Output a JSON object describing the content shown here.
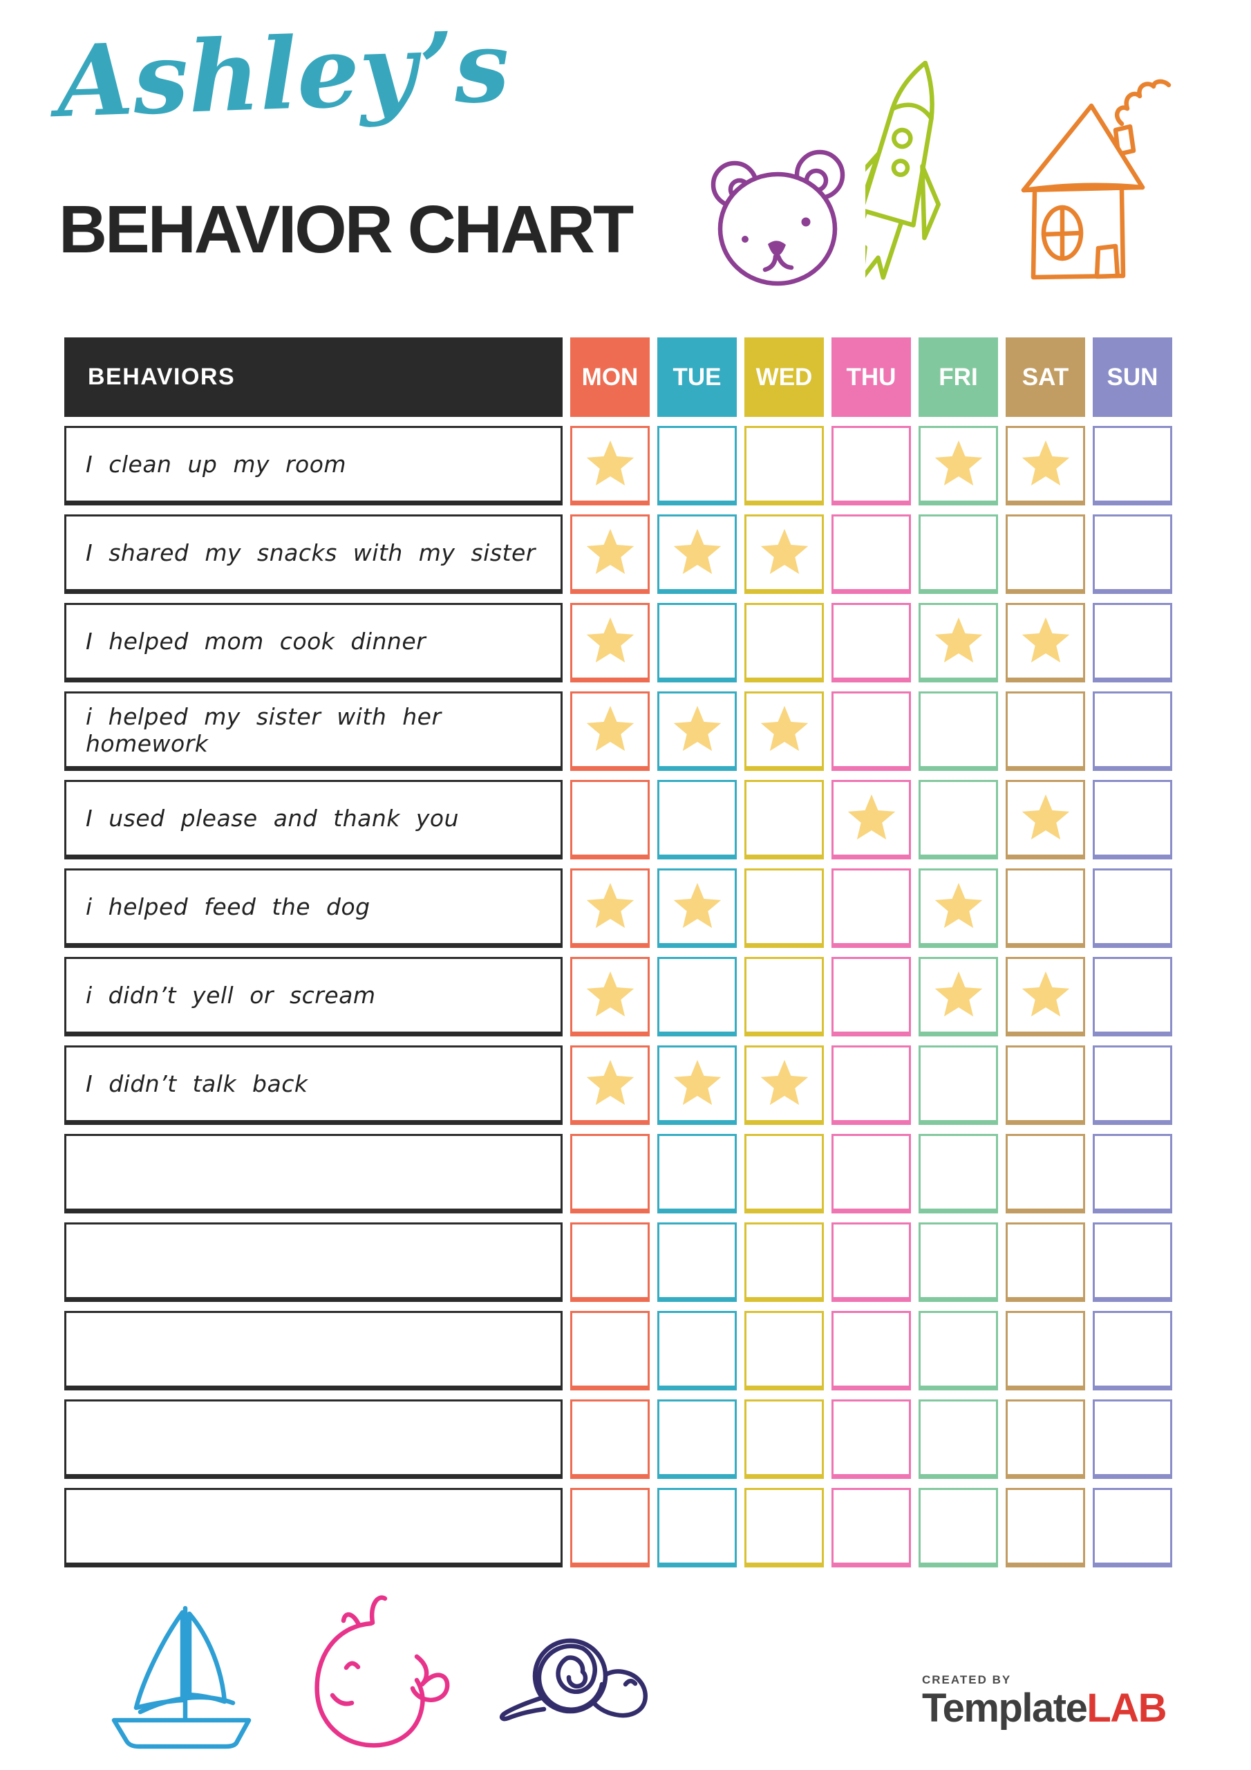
{
  "title": {
    "name": "Ashley’s",
    "main": "BEHAVIOR CHART"
  },
  "colors": {
    "accent": "#38A7BD",
    "ink": "#262626",
    "table_header_bg": "#2A2A2A",
    "star": "#F8D57E",
    "brand_dark": "#3E3E3E",
    "brand_red": "#DD3832"
  },
  "doodles": {
    "top": [
      {
        "name": "bear-icon",
        "color": "#8C3F93"
      },
      {
        "name": "rocket-icon",
        "color": "#A5C426"
      },
      {
        "name": "house-icon",
        "color": "#E8822E"
      }
    ],
    "bottom": [
      {
        "name": "sailboat-icon",
        "color": "#2E9FD4"
      },
      {
        "name": "whale-icon",
        "color": "#E8338B"
      },
      {
        "name": "snail-icon",
        "color": "#332D6B"
      }
    ]
  },
  "table": {
    "behaviors_header": "BEHAVIORS",
    "days": [
      {
        "label": "MON",
        "color": "#ED6C52"
      },
      {
        "label": "TUE",
        "color": "#35ACC2"
      },
      {
        "label": "WED",
        "color": "#D9C133"
      },
      {
        "label": "THU",
        "color": "#EE74B2"
      },
      {
        "label": "FRI",
        "color": "#82C89E"
      },
      {
        "label": "SAT",
        "color": "#C29D63"
      },
      {
        "label": "SUN",
        "color": "#8A8DC8"
      }
    ],
    "rows": [
      {
        "behavior": "I clean up my room",
        "stars": [
          "MON",
          "FRI",
          "SAT"
        ]
      },
      {
        "behavior": "I shared my snacks with my sister",
        "stars": [
          "MON",
          "TUE",
          "WED"
        ]
      },
      {
        "behavior": "I helped mom cook dinner",
        "stars": [
          "MON",
          "FRI",
          "SAT"
        ]
      },
      {
        "behavior": "i helped my sister with her homework",
        "stars": [
          "MON",
          "TUE",
          "WED"
        ]
      },
      {
        "behavior": "I used please and thank you",
        "stars": [
          "THU",
          "SAT"
        ]
      },
      {
        "behavior": "i helped feed the dog",
        "stars": [
          "MON",
          "TUE",
          "FRI"
        ]
      },
      {
        "behavior": "i didn’t yell or scream",
        "stars": [
          "MON",
          "FRI",
          "SAT"
        ]
      },
      {
        "behavior": "I didn’t talk back",
        "stars": [
          "MON",
          "TUE",
          "WED"
        ]
      },
      {
        "behavior": "",
        "stars": []
      },
      {
        "behavior": "",
        "stars": []
      },
      {
        "behavior": "",
        "stars": []
      },
      {
        "behavior": "",
        "stars": []
      },
      {
        "behavior": "",
        "stars": []
      }
    ]
  },
  "footer": {
    "created_by": "CREATED BY",
    "brand_first": "Template",
    "brand_last": "LAB"
  }
}
